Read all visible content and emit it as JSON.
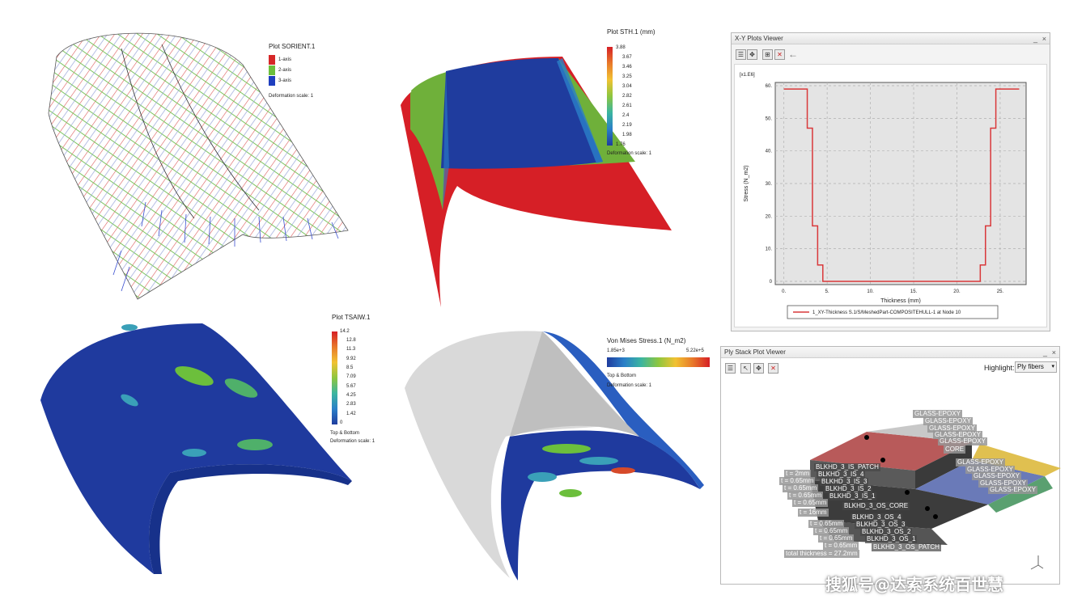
{
  "panel_orient": {
    "title": "Plot SORIENT.1",
    "legend": [
      {
        "label": "1-axis",
        "color": "#d62728"
      },
      {
        "label": "2-axis",
        "color": "#6cbf3c"
      },
      {
        "label": "3-axis",
        "color": "#1f3fbf"
      }
    ],
    "deformation": "Deformation scale: 1"
  },
  "panel_thickness": {
    "title": "Plot STH.1 (mm)",
    "scale": [
      "3.88",
      "3.67",
      "3.46",
      "3.25",
      "3.04",
      "2.82",
      "2.61",
      "2.4",
      "2.19",
      "1.98",
      "1.76"
    ],
    "deformation": "Deformation scale: 1"
  },
  "panel_tsaiw": {
    "title": "Plot TSAIW.1",
    "scale": [
      "14.2",
      "12.8",
      "11.3",
      "9.92",
      "8.5",
      "7.09",
      "5.67",
      "4.25",
      "2.83",
      "1.42",
      "0"
    ],
    "note": "Top & Bottom",
    "deformation": "Deformation scale: 1"
  },
  "panel_vonmises": {
    "title": "Von Mises Stress.1 (N_m2)",
    "min": "1.85e+3",
    "max": "5.22e+5",
    "note": "Top & Bottom",
    "deformation": "Deformation scale: 1"
  },
  "xy_window": {
    "title": "X-Y Plots Viewer",
    "minimize": "_",
    "close": "×",
    "back_arrow": "←",
    "toolbar_icons": [
      "list-icon",
      "fit-all-icon",
      "chart-options-icon",
      "delete-icon"
    ]
  },
  "ply_window": {
    "title": "Ply Stack Plot Viewer",
    "minimize": "_",
    "close": "×",
    "highlight_label": "Highlight:",
    "highlight_value": "Ply fibers",
    "toolbar_icons": [
      "list-icon",
      "select-icon",
      "fit-all-icon",
      "delete-icon"
    ],
    "ply_labels_right": [
      "GLASS-EPOXY",
      "GLASS-EPOXY",
      "GLASS-EPOXY",
      "GLASS-EPOXY",
      "GLASS-EPOXY",
      "CORE",
      "GLASS-EPOXY",
      "GLASS-EPOXY",
      "GLASS-EPOXY",
      "GLASS-EPOXY",
      "GLASS-EPOXY"
    ],
    "ply_names": [
      "BLKHD_3_IS_PATCH",
      "BLKHD_3_IS_4",
      "BLKHD_3_IS_3",
      "BLKHD_3_IS_2",
      "BLKHD_3_IS_1",
      "BLKHD_3_OS_CORE",
      "BLKHD_3_OS_4",
      "BLKHD_3_OS_3",
      "BLKHD_3_OS_2",
      "BLKHD_3_OS_1",
      "BLKHD_3_OS_PATCH"
    ],
    "thickness_labels": [
      "t = 2mm",
      "t = 0.65mm",
      "t = 0.65mm",
      "t = 0.65mm",
      "t = 0.65mm",
      "t = 16mm",
      "t = 0.65mm",
      "t = 0.65mm",
      "t = 0.65mm",
      "t = 0.65mm",
      "total thickness = 27.2mm"
    ]
  },
  "watermark": "搜狐号@达索系统百世慧",
  "chart_data": {
    "type": "line",
    "title": "",
    "xlabel": "Thickness (mm)",
    "ylabel": "Stress (N_m2)",
    "y_multiplier": "[x1.E6]",
    "xlim": [
      -1,
      28
    ],
    "ylim": [
      -1,
      61
    ],
    "x_ticks": [
      "0.",
      "5.",
      "10.",
      "15.",
      "20.",
      "25."
    ],
    "y_ticks": [
      "0",
      "10.",
      "20.",
      "30.",
      "40.",
      "50.",
      "60."
    ],
    "grid": true,
    "legend": "bottom-center",
    "series": [
      {
        "name": "1_XY-Thickness S.1/S/MeshedPart-COMPOSITEHULL-1 at Node 10",
        "color": "#d9383a",
        "x": [
          0,
          2.7,
          2.7,
          3.3,
          3.3,
          3.9,
          3.9,
          4.5,
          4.5,
          22.7,
          22.7,
          23.3,
          23.3,
          23.9,
          23.9,
          24.5,
          24.5,
          27.2
        ],
        "y": [
          59,
          59,
          47,
          47,
          17,
          17,
          5,
          5,
          0,
          0,
          5,
          5,
          17,
          17,
          47,
          47,
          59,
          59
        ]
      }
    ]
  }
}
